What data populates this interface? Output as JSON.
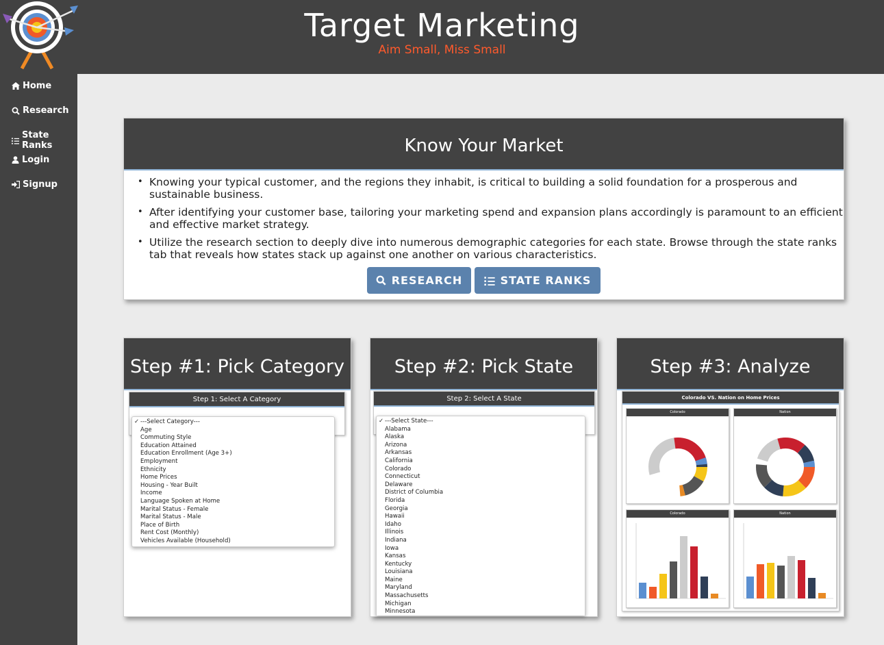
{
  "header": {
    "title": "Target Marketing",
    "tagline": "Aim Small, Miss Small",
    "colors": {
      "bar": "#424242",
      "tagline": "#ff5a2c"
    }
  },
  "sidebar": {
    "items": [
      {
        "label": "Home",
        "icon": "home-icon"
      },
      {
        "label": "Research",
        "icon": "search-icon"
      },
      {
        "label": "State Ranks",
        "icon": "list-icon"
      },
      {
        "label": "Login",
        "icon": "user-icon"
      },
      {
        "label": "Signup",
        "icon": "sign-in-icon"
      }
    ]
  },
  "intro": {
    "title": "Know Your Market",
    "bullets": [
      "Knowing your typical customer, and the regions they inhabit, is critical to building a solid foundation for a prosperous and sustainable business.",
      "After identifying your customer base, tailoring your marketing spend and expansion plans accordingly is paramount to an efficient and effective market strategy.",
      "Utilize the research section to deeply dive into numerous demographic categories for each state. Browse through the state ranks tab that reveals how states stack up against one another on various characteristics."
    ],
    "buttons": {
      "research": "RESEARCH",
      "state_ranks": "STATE RANKS"
    },
    "button_color": "#5b82ad"
  },
  "steps": [
    {
      "title": "Step #1: Pick Category",
      "panel_title": "Step 1: Select A Category",
      "options": [
        "---Select Category---",
        "Age",
        "Commuting Style",
        "Education Attained",
        "Education Enrollment (Age 3+)",
        "Employment",
        "Ethnicity",
        "Home Prices",
        "Housing - Year Built",
        "Income",
        "Language Spoken at Home",
        "Marital Status - Female",
        "Marital Status - Male",
        "Place of Birth",
        "Rent Cost (Monthly)",
        "Vehicles Available (Household)"
      ]
    },
    {
      "title": "Step #2: Pick State",
      "panel_title": "Step 2: Select A State",
      "options": [
        "---Select State---",
        "Alabama",
        "Alaska",
        "Arizona",
        "Arkansas",
        "California",
        "Colorado",
        "Connecticut",
        "Delaware",
        "District of Columbia",
        "Florida",
        "Georgia",
        "Hawaii",
        "Idaho",
        "Illinois",
        "Indiana",
        "Iowa",
        "Kansas",
        "Kentucky",
        "Louisiana",
        "Maine",
        "Maryland",
        "Massachusetts",
        "Michigan",
        "Minnesota"
      ]
    },
    {
      "title": "Step #3: Analyze",
      "panel_title": "Colorado VS. Nation on Home Prices",
      "sub_panels": [
        "Colorado",
        "Nation",
        "Colorado",
        "Nation"
      ]
    }
  ]
}
